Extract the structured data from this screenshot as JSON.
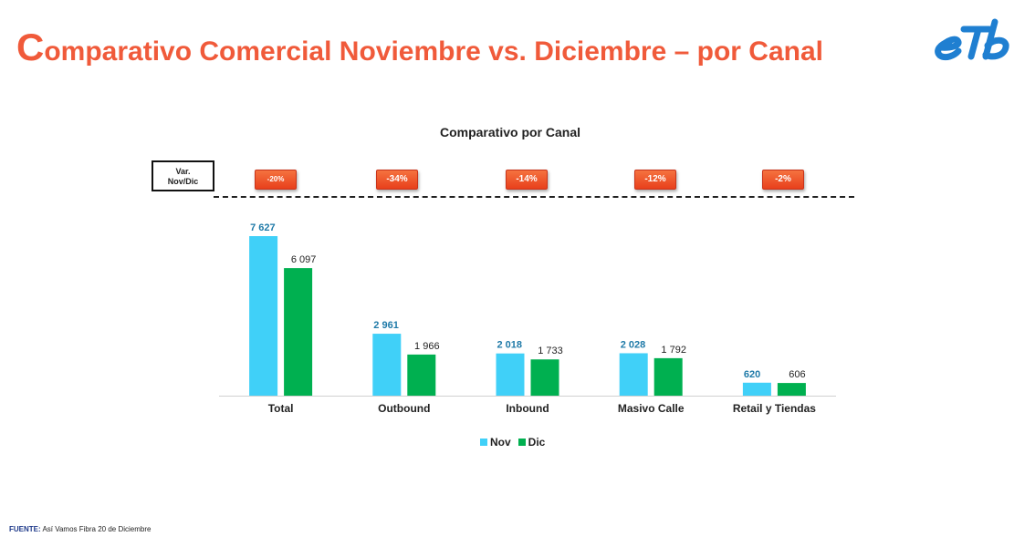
{
  "header": {
    "title_first_letter": "C",
    "title_rest": "omparativo Comercial Noviembre vs. Diciembre – por Canal"
  },
  "logo": {
    "icon": "etb-logo",
    "color": "#1f7fd1"
  },
  "variation": {
    "label_line1": "Var.",
    "label_line2": "Nov/Dic",
    "badges": [
      "-20%",
      "-34%",
      "-14%",
      "-12%",
      "-2%"
    ]
  },
  "colors": {
    "nov": "#40d0f8",
    "dic": "#00b050",
    "nov_label": "#1f7aa8",
    "accent": "#f05a3a"
  },
  "chart_data": {
    "type": "bar",
    "title": "Comparativo por Canal",
    "categories": [
      "Total",
      "Outbound",
      "Inbound",
      "Masivo Calle",
      "Retail y Tiendas"
    ],
    "series": [
      {
        "name": "Nov",
        "values": [
          7627,
          2961,
          2018,
          2028,
          620
        ],
        "labels": [
          "7 627",
          "2 961",
          "2 018",
          "2 028",
          "620"
        ]
      },
      {
        "name": "Dic",
        "values": [
          6097,
          1966,
          1733,
          1792,
          606
        ],
        "labels": [
          "6 097",
          "1 966",
          "1 733",
          "1 792",
          "606"
        ]
      }
    ],
    "xlabel": "",
    "ylabel": "",
    "ylim": [
      0,
      7627
    ],
    "grid": false,
    "legend_position": "bottom"
  },
  "footer": {
    "source_label": "FUENTE:",
    "source_text": "Así Vamos Fibra 20 de Diciembre"
  }
}
